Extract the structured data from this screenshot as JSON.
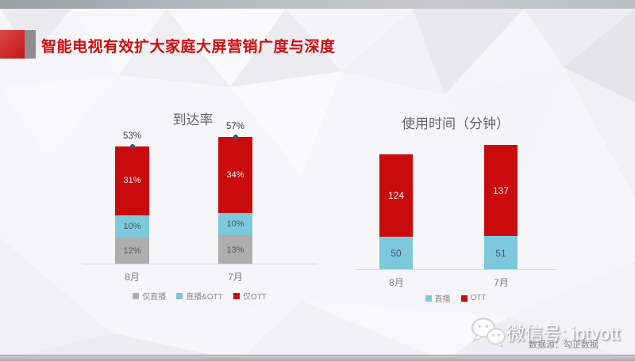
{
  "header": {
    "title": "智能电视有效扩大家庭大屏营销广度与深度"
  },
  "chart_data": [
    {
      "type": "bar",
      "subtype": "stacked-column",
      "title": "到达率",
      "categories": [
        "8月",
        "7月"
      ],
      "series": [
        {
          "name": "仅直播",
          "color": "#aeaeae",
          "values": [
            12,
            13
          ],
          "labels": [
            "12%",
            "13%"
          ]
        },
        {
          "name": "直播&OTT",
          "color": "#7ec8db",
          "values": [
            10,
            10
          ],
          "labels": [
            "10%",
            "10%"
          ]
        },
        {
          "name": "仅OTT",
          "color": "#c90b0d",
          "values": [
            31,
            34
          ],
          "labels": [
            "31%",
            "34%"
          ]
        }
      ],
      "totals": {
        "values": [
          53,
          57
        ],
        "labels": [
          "53%",
          "57%"
        ],
        "marker_color": "#44546a"
      },
      "unit": "%",
      "ylim": [
        0,
        60
      ],
      "grid": false,
      "legend_position": "bottom"
    },
    {
      "type": "bar",
      "subtype": "stacked-column",
      "title": "使用时间（分钟）",
      "categories": [
        "8月",
        "7月"
      ],
      "series": [
        {
          "name": "直播",
          "color": "#7ec8db",
          "values": [
            50,
            51
          ],
          "labels": [
            "50",
            "51"
          ]
        },
        {
          "name": "OTT",
          "color": "#c90b0d",
          "values": [
            124,
            137
          ],
          "labels": [
            "124",
            "137"
          ]
        }
      ],
      "unit": "分钟",
      "ylim": [
        0,
        190
      ],
      "grid": false,
      "legend_position": "bottom"
    }
  ],
  "footer": {
    "wechat_label": "微信号: iptvott",
    "source_label": "数据源：勾正数据"
  },
  "theme": {
    "accent_red": "#c90b0d",
    "accent_blue": "#7ec8db",
    "accent_gray": "#aeaeae",
    "title_red": "#d30b0e",
    "axis_gray": "#d9d9d9"
  }
}
